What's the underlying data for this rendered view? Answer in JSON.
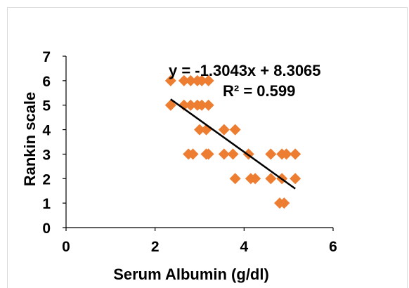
{
  "chart_data": {
    "type": "scatter",
    "xlabel": "Serum Albumin  (g/dl)",
    "ylabel": "Rankin scale",
    "xlim": [
      0,
      6
    ],
    "ylim": [
      0,
      7
    ],
    "x_ticks": [
      "0",
      "2",
      "4",
      "6"
    ],
    "y_ticks": [
      "0",
      "1",
      "2",
      "3",
      "4",
      "5",
      "6",
      "7"
    ],
    "grid": false,
    "marker_color": "#ED7D31",
    "trendline_color": "#000000",
    "points": [
      [
        2.35,
        6
      ],
      [
        2.65,
        6
      ],
      [
        2.8,
        6
      ],
      [
        2.95,
        6
      ],
      [
        3.05,
        6
      ],
      [
        3.2,
        6
      ],
      [
        2.35,
        5
      ],
      [
        2.65,
        5
      ],
      [
        2.8,
        5
      ],
      [
        2.95,
        5
      ],
      [
        3.05,
        5
      ],
      [
        3.2,
        5
      ],
      [
        3.0,
        4
      ],
      [
        3.15,
        4
      ],
      [
        3.55,
        4
      ],
      [
        3.8,
        4
      ],
      [
        2.75,
        3
      ],
      [
        2.85,
        3
      ],
      [
        3.15,
        3
      ],
      [
        3.2,
        3
      ],
      [
        3.55,
        3
      ],
      [
        3.75,
        3
      ],
      [
        4.1,
        3
      ],
      [
        4.6,
        3
      ],
      [
        4.85,
        3
      ],
      [
        4.95,
        3
      ],
      [
        5.15,
        3
      ],
      [
        3.8,
        2
      ],
      [
        4.15,
        2
      ],
      [
        4.25,
        2
      ],
      [
        4.6,
        2
      ],
      [
        4.85,
        2
      ],
      [
        5.15,
        2
      ],
      [
        4.8,
        1
      ],
      [
        4.9,
        1
      ]
    ],
    "trendline": {
      "slope": -1.3043,
      "intercept": 8.3065,
      "x_range": [
        2.35,
        5.15
      ],
      "equation": "y = -1.3043x + 8.3065",
      "r_squared": "R² = 0.599"
    }
  }
}
